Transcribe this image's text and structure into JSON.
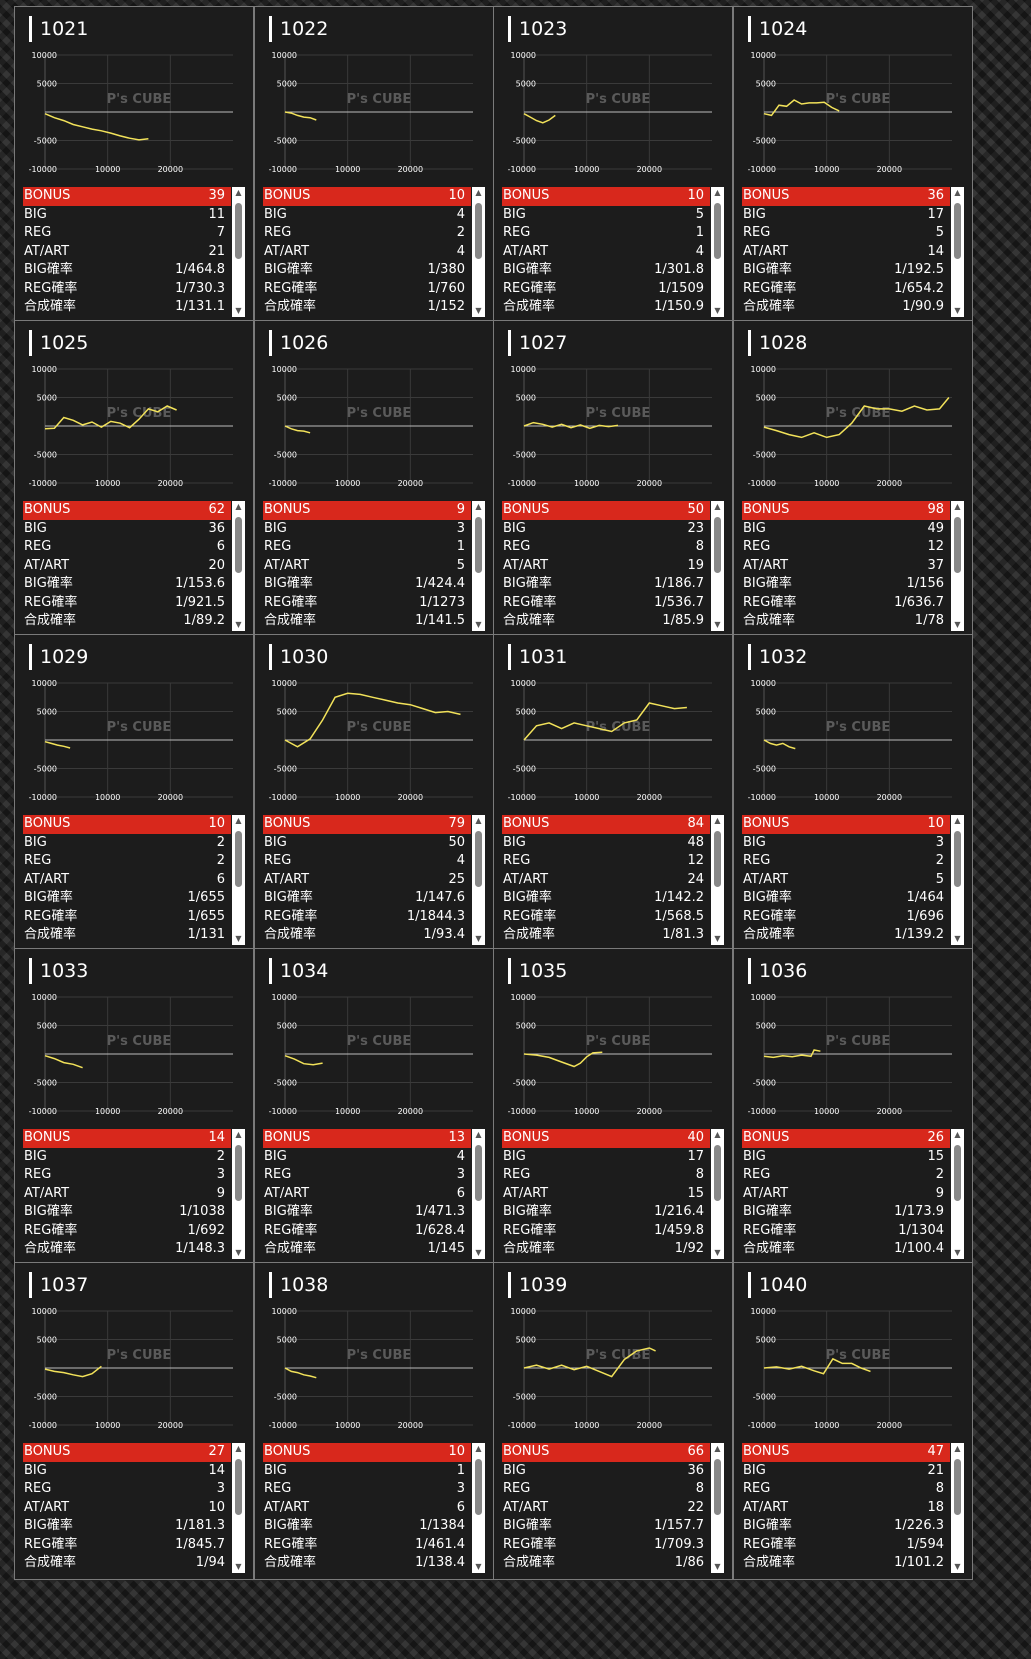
{
  "labels": {
    "bonus": "BONUS",
    "big": "BIG",
    "reg": "REG",
    "at": "AT/ART",
    "big_rate": "BIG確率",
    "reg_rate": "REG確率",
    "total_rate": "合成確率"
  },
  "icons": {
    "scroll_up": "scroll-up-arrow-icon",
    "scroll_down": "scroll-down-arrow-icon"
  },
  "colors": {
    "bonus_bar": "#d8281c",
    "graph_line": "#f2e25a",
    "card_bg": "#1c1c1c",
    "scrollbar": "#ffffff"
  },
  "watermark": {
    "text": "P's CUBE"
  },
  "machines": [
    {
      "id": "1021",
      "bonus": "39",
      "big": "11",
      "reg": "7",
      "at": "21",
      "big_rate": "1/464.8",
      "reg_rate": "1/730.3",
      "total_rate": "1/131.1"
    },
    {
      "id": "1022",
      "bonus": "10",
      "big": "4",
      "reg": "2",
      "at": "4",
      "big_rate": "1/380",
      "reg_rate": "1/760",
      "total_rate": "1/152"
    },
    {
      "id": "1023",
      "bonus": "10",
      "big": "5",
      "reg": "1",
      "at": "4",
      "big_rate": "1/301.8",
      "reg_rate": "1/1509",
      "total_rate": "1/150.9"
    },
    {
      "id": "1024",
      "bonus": "36",
      "big": "17",
      "reg": "5",
      "at": "14",
      "big_rate": "1/192.5",
      "reg_rate": "1/654.2",
      "total_rate": "1/90.9"
    },
    {
      "id": "1025",
      "bonus": "62",
      "big": "36",
      "reg": "6",
      "at": "20",
      "big_rate": "1/153.6",
      "reg_rate": "1/921.5",
      "total_rate": "1/89.2"
    },
    {
      "id": "1026",
      "bonus": "9",
      "big": "3",
      "reg": "1",
      "at": "5",
      "big_rate": "1/424.4",
      "reg_rate": "1/1273",
      "total_rate": "1/141.5"
    },
    {
      "id": "1027",
      "bonus": "50",
      "big": "23",
      "reg": "8",
      "at": "19",
      "big_rate": "1/186.7",
      "reg_rate": "1/536.7",
      "total_rate": "1/85.9"
    },
    {
      "id": "1028",
      "bonus": "98",
      "big": "49",
      "reg": "12",
      "at": "37",
      "big_rate": "1/156",
      "reg_rate": "1/636.7",
      "total_rate": "1/78"
    },
    {
      "id": "1029",
      "bonus": "10",
      "big": "2",
      "reg": "2",
      "at": "6",
      "big_rate": "1/655",
      "reg_rate": "1/655",
      "total_rate": "1/131"
    },
    {
      "id": "1030",
      "bonus": "79",
      "big": "50",
      "reg": "4",
      "at": "25",
      "big_rate": "1/147.6",
      "reg_rate": "1/1844.3",
      "total_rate": "1/93.4"
    },
    {
      "id": "1031",
      "bonus": "84",
      "big": "48",
      "reg": "12",
      "at": "24",
      "big_rate": "1/142.2",
      "reg_rate": "1/568.5",
      "total_rate": "1/81.3"
    },
    {
      "id": "1032",
      "bonus": "10",
      "big": "3",
      "reg": "2",
      "at": "5",
      "big_rate": "1/464",
      "reg_rate": "1/696",
      "total_rate": "1/139.2"
    },
    {
      "id": "1033",
      "bonus": "14",
      "big": "2",
      "reg": "3",
      "at": "9",
      "big_rate": "1/1038",
      "reg_rate": "1/692",
      "total_rate": "1/148.3"
    },
    {
      "id": "1034",
      "bonus": "13",
      "big": "4",
      "reg": "3",
      "at": "6",
      "big_rate": "1/471.3",
      "reg_rate": "1/628.4",
      "total_rate": "1/145"
    },
    {
      "id": "1035",
      "bonus": "40",
      "big": "17",
      "reg": "8",
      "at": "15",
      "big_rate": "1/216.4",
      "reg_rate": "1/459.8",
      "total_rate": "1/92"
    },
    {
      "id": "1036",
      "bonus": "26",
      "big": "15",
      "reg": "2",
      "at": "9",
      "big_rate": "1/173.9",
      "reg_rate": "1/1304",
      "total_rate": "1/100.4"
    },
    {
      "id": "1037",
      "bonus": "27",
      "big": "14",
      "reg": "3",
      "at": "10",
      "big_rate": "1/181.3",
      "reg_rate": "1/845.7",
      "total_rate": "1/94"
    },
    {
      "id": "1038",
      "bonus": "10",
      "big": "1",
      "reg": "3",
      "at": "6",
      "big_rate": "1/1384",
      "reg_rate": "1/461.4",
      "total_rate": "1/138.4"
    },
    {
      "id": "1039",
      "bonus": "66",
      "big": "36",
      "reg": "8",
      "at": "22",
      "big_rate": "1/157.7",
      "reg_rate": "1/709.3",
      "total_rate": "1/86"
    },
    {
      "id": "1040",
      "bonus": "47",
      "big": "21",
      "reg": "8",
      "at": "18",
      "big_rate": "1/226.3",
      "reg_rate": "1/594",
      "total_rate": "1/101.2"
    }
  ],
  "chart_data": [
    {
      "type": "line",
      "title": "1021",
      "xlim": [
        0,
        30000
      ],
      "ylim": [
        -10000,
        10000
      ],
      "yticks": [
        "10000",
        "5000",
        "-5000",
        "-10000"
      ],
      "xticks": [
        "10000",
        "20000"
      ],
      "x": [
        0,
        1500,
        3000,
        4500,
        6000,
        7500,
        9000,
        10500,
        12000,
        13500,
        15000,
        16500
      ],
      "y": [
        -300,
        -1000,
        -1500,
        -2200,
        -2600,
        -3000,
        -3300,
        -3700,
        -4200,
        -4600,
        -4900,
        -4700
      ]
    },
    {
      "type": "line",
      "title": "1022",
      "xlim": [
        0,
        30000
      ],
      "ylim": [
        -10000,
        10000
      ],
      "yticks": [
        "10000",
        "5000",
        "-5000",
        "-10000"
      ],
      "xticks": [
        "10000",
        "20000"
      ],
      "x": [
        0,
        1000,
        2000,
        3000,
        4000,
        5000
      ],
      "y": [
        0,
        -200,
        -600,
        -900,
        -1000,
        -1400
      ]
    },
    {
      "type": "line",
      "title": "1023",
      "xlim": [
        0,
        30000
      ],
      "ylim": [
        -10000,
        10000
      ],
      "yticks": [
        "10000",
        "5000",
        "-5000",
        "-10000"
      ],
      "xticks": [
        "10000",
        "20000"
      ],
      "x": [
        0,
        1000,
        2000,
        3000,
        4000,
        5000
      ],
      "y": [
        -300,
        -900,
        -1500,
        -1900,
        -1400,
        -600
      ]
    },
    {
      "type": "line",
      "title": "1024",
      "xlim": [
        0,
        30000
      ],
      "ylim": [
        -10000,
        10000
      ],
      "yticks": [
        "10000",
        "5000",
        "-5000",
        "-10000"
      ],
      "xticks": [
        "10000",
        "20000"
      ],
      "x": [
        0,
        1200,
        2400,
        3600,
        4800,
        6000,
        7200,
        8400,
        9600,
        10800,
        12000
      ],
      "y": [
        -300,
        -600,
        1200,
        1000,
        2100,
        1400,
        1600,
        1600,
        1700,
        800,
        200
      ]
    },
    {
      "type": "line",
      "title": "1025",
      "xlim": [
        0,
        30000
      ],
      "ylim": [
        -10000,
        10000
      ],
      "yticks": [
        "10000",
        "5000",
        "-5000",
        "-10000"
      ],
      "xticks": [
        "10000",
        "20000"
      ],
      "x": [
        0,
        1500,
        3000,
        4500,
        6000,
        7500,
        9000,
        10500,
        12000,
        13500,
        15000,
        16500,
        18000,
        19500,
        21000
      ],
      "y": [
        -500,
        -400,
        1500,
        1000,
        200,
        700,
        -200,
        800,
        500,
        -300,
        1200,
        3000,
        2500,
        3500,
        2800
      ]
    },
    {
      "type": "line",
      "title": "1026",
      "xlim": [
        0,
        30000
      ],
      "ylim": [
        -10000,
        10000
      ],
      "yticks": [
        "10000",
        "5000",
        "-5000",
        "-10000"
      ],
      "xticks": [
        "10000",
        "20000"
      ],
      "x": [
        0,
        1000,
        2000,
        3000,
        4000
      ],
      "y": [
        0,
        -500,
        -800,
        -900,
        -1200
      ]
    },
    {
      "type": "line",
      "title": "1027",
      "xlim": [
        0,
        30000
      ],
      "ylim": [
        -10000,
        10000
      ],
      "yticks": [
        "10000",
        "5000",
        "-5000",
        "-10000"
      ],
      "xticks": [
        "10000",
        "20000"
      ],
      "x": [
        0,
        1500,
        3000,
        4500,
        6000,
        7500,
        9000,
        10500,
        12000,
        13500,
        15000
      ],
      "y": [
        0,
        600,
        300,
        -200,
        300,
        -300,
        200,
        -400,
        100,
        -100,
        100
      ]
    },
    {
      "type": "line",
      "title": "1028",
      "xlim": [
        0,
        30000
      ],
      "ylim": [
        -10000,
        10000
      ],
      "yticks": [
        "10000",
        "5000",
        "-5000",
        "-10000"
      ],
      "xticks": [
        "10000",
        "20000"
      ],
      "x": [
        0,
        2000,
        4000,
        6000,
        8000,
        10000,
        12000,
        14000,
        16000,
        18000,
        20000,
        22000,
        24000,
        26000,
        28000,
        29500
      ],
      "y": [
        -200,
        -800,
        -1500,
        -2000,
        -1200,
        -2000,
        -1500,
        500,
        3500,
        3000,
        3000,
        2600,
        3500,
        2800,
        3000,
        5000
      ]
    },
    {
      "type": "line",
      "title": "1029",
      "xlim": [
        0,
        30000
      ],
      "ylim": [
        -10000,
        10000
      ],
      "yticks": [
        "10000",
        "5000",
        "-5000",
        "-10000"
      ],
      "xticks": [
        "10000",
        "20000"
      ],
      "x": [
        0,
        1000,
        2000,
        3000,
        4000
      ],
      "y": [
        -300,
        -600,
        -900,
        -1100,
        -1400
      ]
    },
    {
      "type": "line",
      "title": "1030",
      "xlim": [
        0,
        30000
      ],
      "ylim": [
        -10000,
        10000
      ],
      "yticks": [
        "10000",
        "5000",
        "-5000",
        "-10000"
      ],
      "xticks": [
        "10000",
        "20000"
      ],
      "x": [
        0,
        2000,
        4000,
        6000,
        8000,
        10000,
        12000,
        14000,
        16000,
        18000,
        20000,
        22000,
        24000,
        26000,
        28000
      ],
      "y": [
        0,
        -1200,
        200,
        3500,
        7500,
        8200,
        8000,
        7500,
        7000,
        6500,
        6200,
        5500,
        4800,
        5000,
        4500
      ]
    },
    {
      "type": "line",
      "title": "1031",
      "xlim": [
        0,
        30000
      ],
      "ylim": [
        -10000,
        10000
      ],
      "yticks": [
        "10000",
        "5000",
        "-5000",
        "-10000"
      ],
      "xticks": [
        "10000",
        "20000"
      ],
      "x": [
        0,
        2000,
        4000,
        6000,
        8000,
        10000,
        12000,
        14000,
        16000,
        18000,
        20000,
        22000,
        24000,
        26000
      ],
      "y": [
        0,
        2500,
        3000,
        2000,
        3000,
        2500,
        2000,
        1500,
        3000,
        3500,
        6500,
        6000,
        5500,
        5700
      ]
    },
    {
      "type": "line",
      "title": "1032",
      "xlim": [
        0,
        30000
      ],
      "ylim": [
        -10000,
        10000
      ],
      "yticks": [
        "10000",
        "5000",
        "-5000",
        "-10000"
      ],
      "xticks": [
        "10000",
        "20000"
      ],
      "x": [
        0,
        1000,
        2000,
        3000,
        4000,
        5000
      ],
      "y": [
        0,
        -600,
        -900,
        -600,
        -1200,
        -1500
      ]
    },
    {
      "type": "line",
      "title": "1033",
      "xlim": [
        0,
        30000
      ],
      "ylim": [
        -10000,
        10000
      ],
      "yticks": [
        "10000",
        "5000",
        "-5000",
        "-10000"
      ],
      "xticks": [
        "10000",
        "20000"
      ],
      "x": [
        0,
        1500,
        3000,
        4500,
        6000
      ],
      "y": [
        -300,
        -800,
        -1500,
        -1800,
        -2400
      ]
    },
    {
      "type": "line",
      "title": "1034",
      "xlim": [
        0,
        30000
      ],
      "ylim": [
        -10000,
        10000
      ],
      "yticks": [
        "10000",
        "5000",
        "-5000",
        "-10000"
      ],
      "xticks": [
        "10000",
        "20000"
      ],
      "x": [
        0,
        1500,
        3000,
        4500,
        6000
      ],
      "y": [
        -300,
        -900,
        -1700,
        -1900,
        -1600
      ]
    },
    {
      "type": "line",
      "title": "1035",
      "xlim": [
        0,
        30000
      ],
      "ylim": [
        -10000,
        10000
      ],
      "yticks": [
        "10000",
        "5000",
        "-5000",
        "-10000"
      ],
      "xticks": [
        "10000",
        "20000"
      ],
      "x": [
        0,
        2000,
        4000,
        6000,
        8000,
        9000,
        10000,
        11000,
        12500
      ],
      "y": [
        0,
        -200,
        -600,
        -1400,
        -2200,
        -1600,
        -500,
        200,
        300
      ]
    },
    {
      "type": "line",
      "title": "1036",
      "xlim": [
        0,
        30000
      ],
      "ylim": [
        -10000,
        10000
      ],
      "yticks": [
        "10000",
        "5000",
        "-5000",
        "-10000"
      ],
      "xticks": [
        "10000",
        "20000"
      ],
      "x": [
        0,
        1500,
        3000,
        4500,
        6000,
        7500,
        8000,
        9000
      ],
      "y": [
        -400,
        -600,
        -300,
        -500,
        -200,
        -400,
        700,
        500
      ]
    },
    {
      "type": "line",
      "title": "1037",
      "xlim": [
        0,
        30000
      ],
      "ylim": [
        -10000,
        10000
      ],
      "yticks": [
        "10000",
        "5000",
        "-5000",
        "-10000"
      ],
      "xticks": [
        "10000",
        "20000"
      ],
      "x": [
        0,
        1500,
        3000,
        4500,
        6000,
        7500,
        9000
      ],
      "y": [
        -200,
        -600,
        -800,
        -1200,
        -1500,
        -1000,
        300
      ]
    },
    {
      "type": "line",
      "title": "1038",
      "xlim": [
        0,
        30000
      ],
      "ylim": [
        -10000,
        10000
      ],
      "yticks": [
        "10000",
        "5000",
        "-5000",
        "-10000"
      ],
      "xticks": [
        "10000",
        "20000"
      ],
      "x": [
        0,
        1000,
        2000,
        3000,
        4000,
        5000
      ],
      "y": [
        0,
        -600,
        -800,
        -1200,
        -1400,
        -1700
      ]
    },
    {
      "type": "line",
      "title": "1039",
      "xlim": [
        0,
        30000
      ],
      "ylim": [
        -10000,
        10000
      ],
      "yticks": [
        "10000",
        "5000",
        "-5000",
        "-10000"
      ],
      "xticks": [
        "10000",
        "20000"
      ],
      "x": [
        0,
        2000,
        4000,
        6000,
        8000,
        10000,
        12000,
        14000,
        16000,
        18000,
        20000,
        21000
      ],
      "y": [
        0,
        500,
        -200,
        500,
        -300,
        300,
        -600,
        -1500,
        1500,
        3000,
        3500,
        3000
      ]
    },
    {
      "type": "line",
      "title": "1040",
      "xlim": [
        0,
        30000
      ],
      "ylim": [
        -10000,
        10000
      ],
      "yticks": [
        "10000",
        "5000",
        "-5000",
        "-10000"
      ],
      "xticks": [
        "10000",
        "20000"
      ],
      "x": [
        0,
        2000,
        4000,
        6000,
        8000,
        9500,
        11000,
        12500,
        14000,
        15500,
        17000
      ],
      "y": [
        0,
        200,
        -200,
        300,
        -500,
        -1000,
        1600,
        800,
        800,
        0,
        -600
      ]
    }
  ]
}
